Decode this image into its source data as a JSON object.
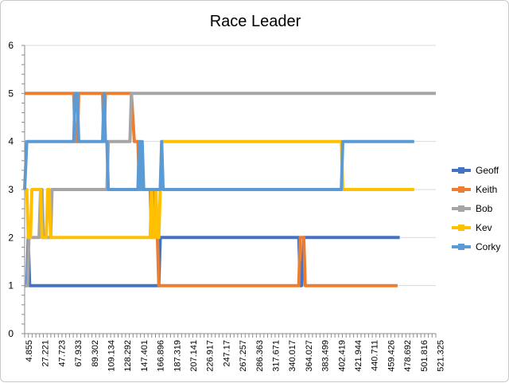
{
  "chart_data": {
    "type": "line",
    "title": "Race Leader",
    "xlabel": "",
    "ylabel": "",
    "ylim": [
      0,
      6
    ],
    "yticks": [
      0,
      1,
      2,
      3,
      4,
      5,
      6
    ],
    "grid": "horizontal",
    "legend_position": "right",
    "x_tick_labels": [
      "4.855",
      "27.221",
      "47.723",
      "67.933",
      "89.302",
      "109.134",
      "128.292",
      "147.401",
      "166.896",
      "187.319",
      "207.141",
      "226.917",
      "247.17",
      "267.257",
      "286.363",
      "317.671",
      "340.017",
      "364.027",
      "383.499",
      "402.419",
      "421.944",
      "440.711",
      "459.426",
      "478.692",
      "501.816",
      "521.325"
    ],
    "x_range": [
      0,
      554
    ],
    "series": [
      {
        "name": "Geoff",
        "color": "#4472C4",
        "points": [
          [
            0,
            1
          ],
          [
            3,
            1
          ],
          [
            5,
            2
          ],
          [
            7,
            1
          ],
          [
            10,
            1
          ],
          [
            70,
            1
          ],
          [
            100,
            1
          ],
          [
            160,
            1
          ],
          [
            186,
            1
          ],
          [
            188,
            2
          ],
          [
            210,
            2
          ],
          [
            380,
            2
          ],
          [
            382,
            1
          ],
          [
            384,
            1
          ],
          [
            387,
            2
          ],
          [
            520,
            2
          ]
        ]
      },
      {
        "name": "Keith",
        "color": "#ED7D31",
        "points": [
          [
            0,
            5
          ],
          [
            68,
            5
          ],
          [
            70,
            4
          ],
          [
            73,
            4
          ],
          [
            75,
            5
          ],
          [
            108,
            5
          ],
          [
            110,
            4
          ],
          [
            112,
            5
          ],
          [
            148,
            5
          ],
          [
            152,
            4
          ],
          [
            157,
            4
          ],
          [
            159,
            3
          ],
          [
            161,
            4
          ],
          [
            163,
            3
          ],
          [
            174,
            3
          ],
          [
            176,
            2
          ],
          [
            178,
            3
          ],
          [
            180,
            3
          ],
          [
            182,
            2
          ],
          [
            184,
            2
          ],
          [
            186,
            1
          ],
          [
            380,
            1
          ],
          [
            382,
            2
          ],
          [
            387,
            2
          ],
          [
            389,
            1
          ],
          [
            517,
            1
          ]
        ]
      },
      {
        "name": "Bob",
        "color": "#A5A5A5",
        "points": [
          [
            0,
            1
          ],
          [
            4,
            1
          ],
          [
            6,
            2
          ],
          [
            20,
            2
          ],
          [
            22,
            3
          ],
          [
            24,
            3
          ],
          [
            26,
            2
          ],
          [
            30,
            2
          ],
          [
            36,
            2
          ],
          [
            38,
            3
          ],
          [
            114,
            3
          ],
          [
            116,
            4
          ],
          [
            146,
            4
          ],
          [
            148,
            5
          ],
          [
            570,
            5
          ]
        ]
      },
      {
        "name": "Kev",
        "color": "#FFC000",
        "points": [
          [
            0,
            3
          ],
          [
            3,
            3
          ],
          [
            5,
            2
          ],
          [
            8,
            2
          ],
          [
            10,
            3
          ],
          [
            22,
            3
          ],
          [
            24,
            2
          ],
          [
            30,
            2
          ],
          [
            32,
            3
          ],
          [
            34,
            3
          ],
          [
            36,
            2
          ],
          [
            174,
            2
          ],
          [
            176,
            3
          ],
          [
            178,
            2
          ],
          [
            180,
            2
          ],
          [
            182,
            3
          ],
          [
            184,
            2
          ],
          [
            186,
            2
          ],
          [
            188,
            3
          ],
          [
            190,
            4
          ],
          [
            439,
            4
          ],
          [
            441,
            3
          ],
          [
            540,
            3
          ]
        ]
      },
      {
        "name": "Corky",
        "color": "#5B9BD5",
        "points": [
          [
            0,
            3
          ],
          [
            3,
            4
          ],
          [
            68,
            4
          ],
          [
            70,
            5
          ],
          [
            73,
            5
          ],
          [
            75,
            4
          ],
          [
            108,
            4
          ],
          [
            110,
            5
          ],
          [
            112,
            4
          ],
          [
            114,
            4
          ],
          [
            116,
            3
          ],
          [
            157,
            3
          ],
          [
            159,
            4
          ],
          [
            161,
            3
          ],
          [
            163,
            4
          ],
          [
            165,
            3
          ],
          [
            188,
            3
          ],
          [
            190,
            4
          ],
          [
            192,
            3
          ],
          [
            439,
            3
          ],
          [
            441,
            4
          ],
          [
            540,
            4
          ]
        ]
      }
    ]
  }
}
